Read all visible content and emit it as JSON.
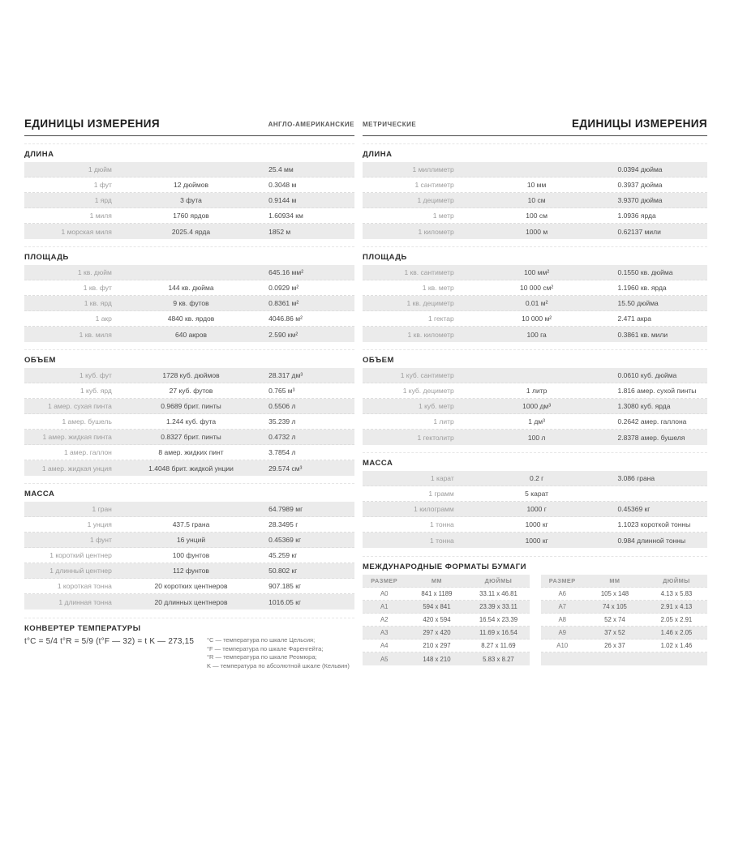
{
  "colors": {
    "row_stripe": "#ebebeb",
    "header_rule": "#4a4a4a",
    "muted_text": "#9d9d9d",
    "body_text": "#4a4a4a"
  },
  "left_page": {
    "title": "ЕДИНИЦЫ ИЗМЕРЕНИЯ",
    "subtitle": "АНГЛО-АМЕРИКАНСКИЕ",
    "sections": [
      {
        "title": "ДЛИНА",
        "rows": [
          [
            "1 дюйм",
            "",
            "25.4 мм"
          ],
          [
            "1 фут",
            "12 дюймов",
            "0.3048 м"
          ],
          [
            "1 ярд",
            "3 фута",
            "0.9144 м"
          ],
          [
            "1 миля",
            "1760 ярдов",
            "1.60934 км"
          ],
          [
            "1 морская миля",
            "2025.4 ярда",
            "1852 м"
          ]
        ]
      },
      {
        "title": "ПЛОЩАДЬ",
        "rows": [
          [
            "1 кв. дюйм",
            "",
            "645.16 мм²"
          ],
          [
            "1 кв. фут",
            "144 кв. дюйма",
            "0.0929 м²"
          ],
          [
            "1 кв. ярд",
            "9 кв. футов",
            "0.8361 м²"
          ],
          [
            "1 акр",
            "4840 кв. ярдов",
            "4046.86 м²"
          ],
          [
            "1 кв. миля",
            "640 акров",
            "2.590 км²"
          ]
        ]
      },
      {
        "title": "ОБЪЕМ",
        "rows": [
          [
            "1 куб. фут",
            "1728 куб. дюймов",
            "28.317 дм³"
          ],
          [
            "1 куб. ярд",
            "27 куб. футов",
            "0.765 м³"
          ],
          [
            "1 амер. сухая пинта",
            "0.9689 брит. пинты",
            "0.5506 л"
          ],
          [
            "1 амер. бушель",
            "1.244 куб. фута",
            "35.239 л"
          ],
          [
            "1 амер. жидкая пинта",
            "0.8327 брит. пинты",
            "0.4732 л"
          ],
          [
            "1 амер. галлон",
            "8 амер. жидких пинт",
            "3.7854 л"
          ],
          [
            "1 амер. жидкая унция",
            "1.4048 брит. жидкой унции",
            "29.574 см³"
          ]
        ]
      },
      {
        "title": "МАССА",
        "rows": [
          [
            "1 гран",
            "",
            "64.7989 мг"
          ],
          [
            "1 унция",
            "437.5 грана",
            "28.3495 г"
          ],
          [
            "1 фунт",
            "16 унций",
            "0.45369 кг"
          ],
          [
            "1 короткий центнер",
            "100 фунтов",
            "45.259 кг"
          ],
          [
            "1 длинный центнер",
            "112 фунтов",
            "50.802 кг"
          ],
          [
            "1 короткая тонна",
            "20 коротких центнеров",
            "907.185 кг"
          ],
          [
            "1 длинная тонна",
            "20 длинных центнеров",
            "1016.05 кг"
          ]
        ]
      }
    ],
    "temperature": {
      "title": "КОНВЕРТЕР ТЕМПЕРАТУРЫ",
      "formula": "t°C = 5/4 t°R = 5/9 (t°F — 32) = t K — 273,15",
      "notes": [
        "°C — температура по шкале Цельсия;",
        "°F — температура по шкале Фаренгейта;",
        "°R — температура по шкале Реомюра;",
        "K — температура по абсолютной шкале (Кельвин)"
      ]
    }
  },
  "right_page": {
    "subtitle": "МЕТРИЧЕСКИЕ",
    "title": "ЕДИНИЦЫ ИЗМЕРЕНИЯ",
    "sections": [
      {
        "title": "ДЛИНА",
        "rows": [
          [
            "1 миллиметр",
            "",
            "0.0394 дюйма"
          ],
          [
            "1 сантиметр",
            "10 мм",
            "0.3937 дюйма"
          ],
          [
            "1 дециметр",
            "10 см",
            "3.9370 дюйма"
          ],
          [
            "1 метр",
            "100 см",
            "1.0936 ярда"
          ],
          [
            "1 километр",
            "1000 м",
            "0.62137 мили"
          ]
        ]
      },
      {
        "title": "ПЛОЩАДЬ",
        "rows": [
          [
            "1 кв. сантиметр",
            "100 мм²",
            "0.1550 кв. дюйма"
          ],
          [
            "1 кв. метр",
            "10 000 см²",
            "1.1960 кв. ярда"
          ],
          [
            "1 кв. дециметр",
            "0.01 м²",
            "15.50 дюйма"
          ],
          [
            "1 гектар",
            "10 000 м²",
            "2.471 акра"
          ],
          [
            "1 кв. километр",
            "100 га",
            "0.3861 кв. мили"
          ]
        ]
      },
      {
        "title": "ОБЪЕМ",
        "rows": [
          [
            "1 куб. сантиметр",
            "",
            "0.0610 куб. дюйма"
          ],
          [
            "1 куб. дециметр",
            "1 литр",
            "1.816 амер. сухой пинты"
          ],
          [
            "1 куб. метр",
            "1000 дм³",
            "1.3080 куб. ярда"
          ],
          [
            "1 литр",
            "1 дм³",
            "0.2642 амер. галлона"
          ],
          [
            "1 гектолитр",
            "100 л",
            "2.8378 амер. бушеля"
          ]
        ]
      },
      {
        "title": "МАССА",
        "rows": [
          [
            "1 карат",
            "0.2 г",
            "3.086 грана"
          ],
          [
            "1 грамм",
            "5 карат",
            ""
          ],
          [
            "1 килограмм",
            "1000 г",
            "0.45369 кг"
          ],
          [
            "1 тонна",
            "1000 кг",
            "1.1023 короткой тонны"
          ],
          [
            "1 тонна",
            "1000 кг",
            "0.984 длинной тонны"
          ]
        ]
      }
    ],
    "paper": {
      "title": "МЕЖДУНАРОДНЫЕ ФОРМАТЫ БУМАГИ",
      "headers": [
        "РАЗМЕР",
        "ММ",
        "ДЮЙМЫ"
      ],
      "left_table": [
        [
          "A0",
          "841 x 1189",
          "33.11 x 46.81"
        ],
        [
          "A1",
          "594 x 841",
          "23.39 x 33.11"
        ],
        [
          "A2",
          "420 x 594",
          "16.54 x 23.39"
        ],
        [
          "A3",
          "297 x 420",
          "11.69 x 16.54"
        ],
        [
          "A4",
          "210 x 297",
          "8.27 x 11.69"
        ],
        [
          "A5",
          "148 x 210",
          "5.83 x 8.27"
        ]
      ],
      "right_table": [
        [
          "A6",
          "105 x 148",
          "4.13 x 5.83"
        ],
        [
          "A7",
          "74 x 105",
          "2.91 x 4.13"
        ],
        [
          "A8",
          "52 x 74",
          "2.05 x 2.91"
        ],
        [
          "A9",
          "37 x 52",
          "1.46 x 2.05"
        ],
        [
          "A10",
          "26 x 37",
          "1.02 x 1.46"
        ],
        [
          "",
          "",
          ""
        ]
      ]
    }
  }
}
